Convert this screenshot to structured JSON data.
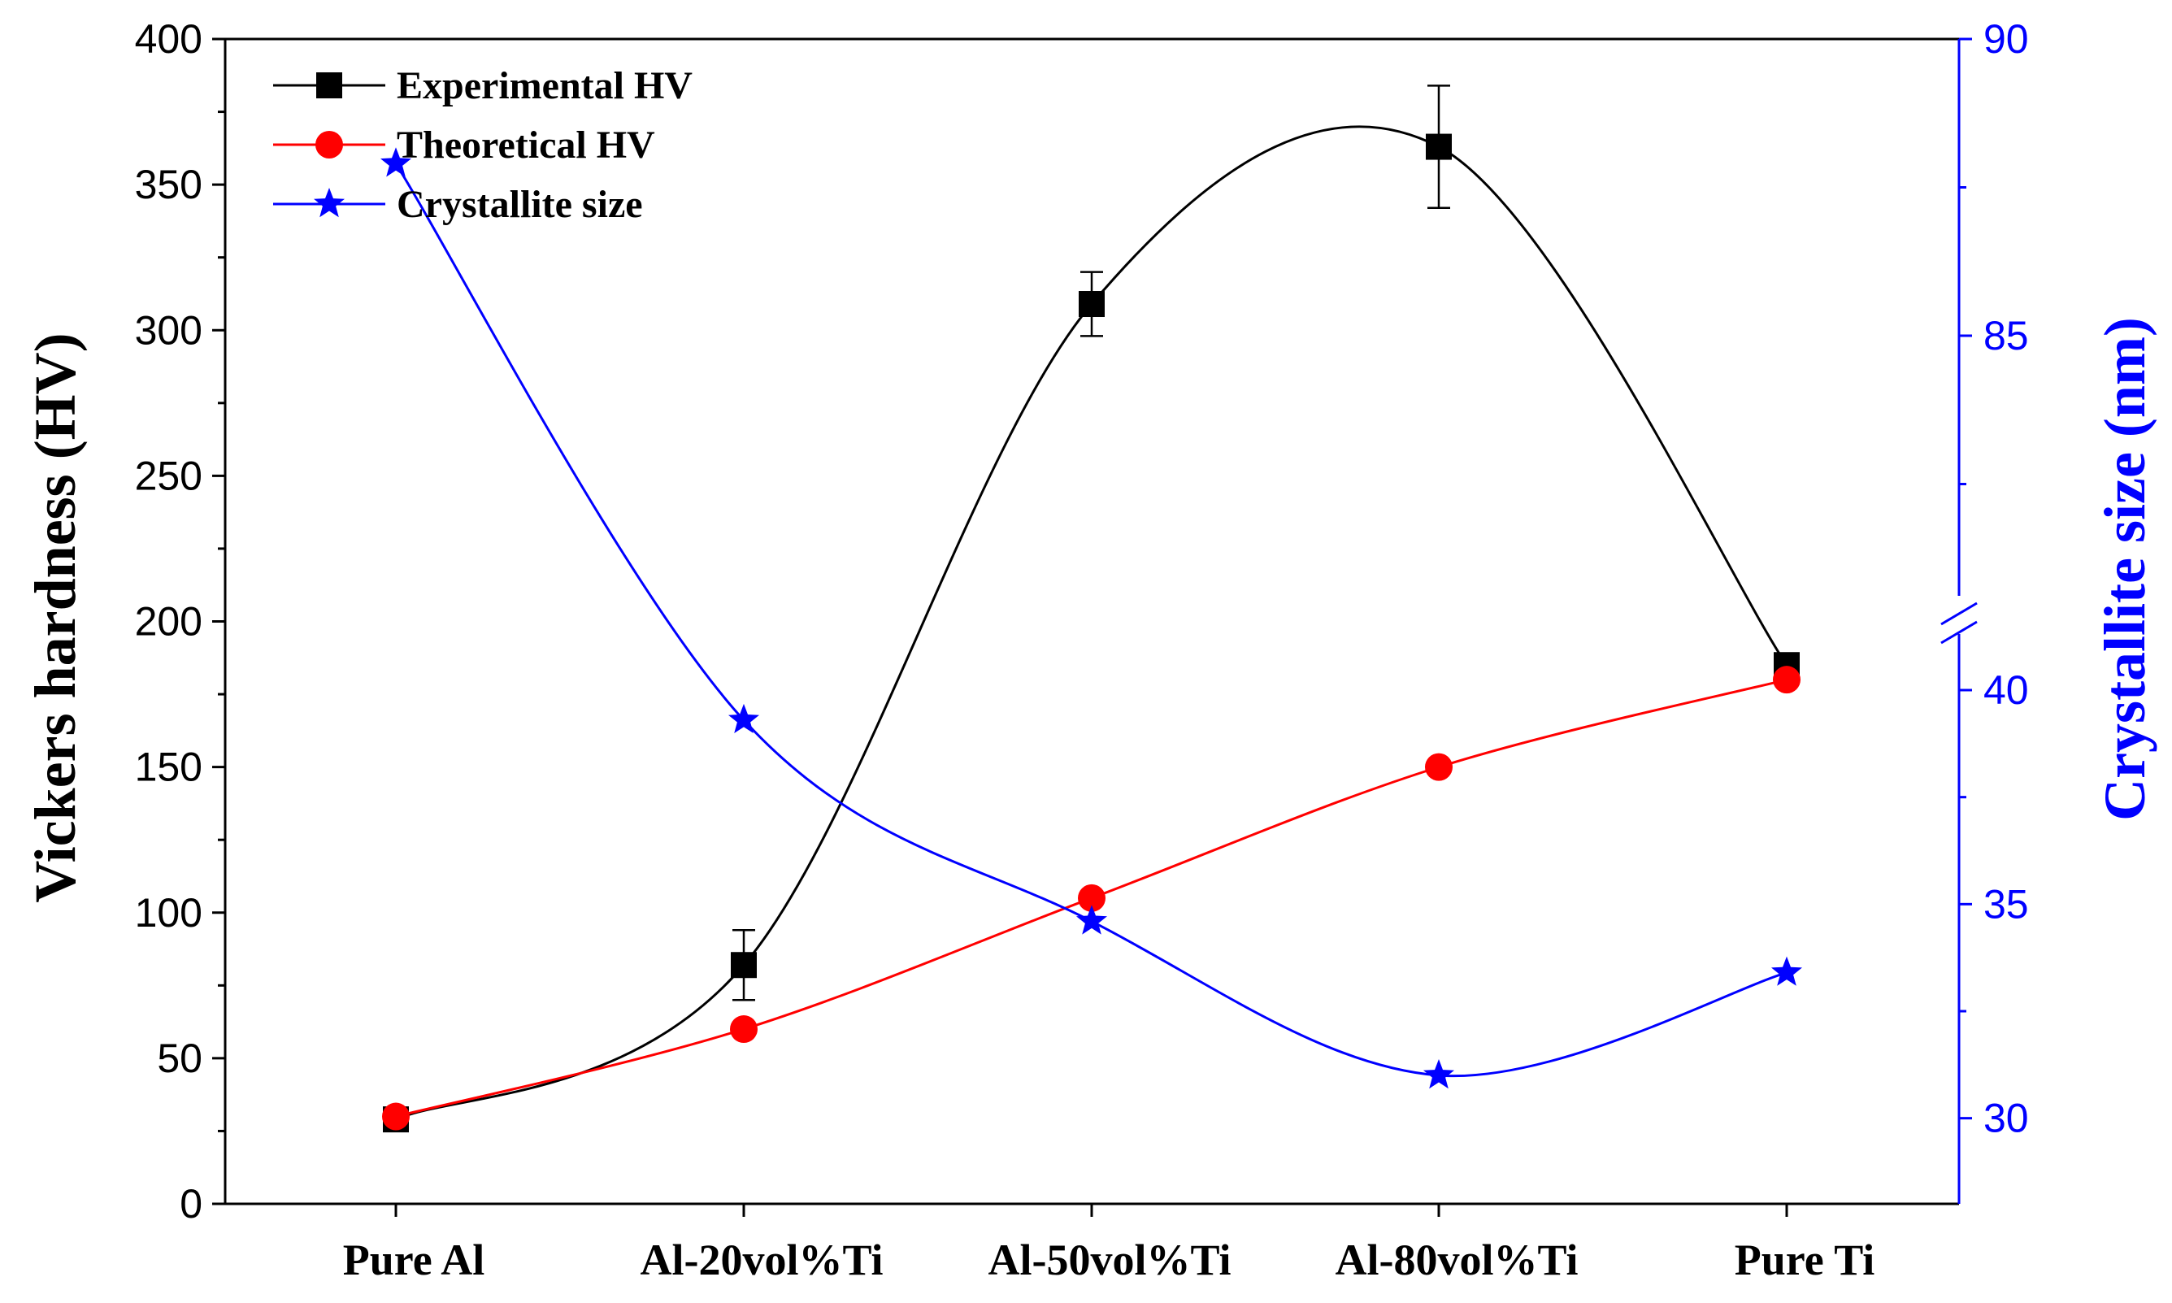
{
  "chart_data": {
    "type": "line",
    "categories": [
      "Pure Al",
      "Al-20vol%Ti",
      "Al-50vol%Ti",
      "Al-80vol%Ti",
      "Pure Ti"
    ],
    "y_left": {
      "label": "Vickers hardness (HV)",
      "range": [
        0,
        400
      ],
      "ticks": [
        "0",
        "50",
        "100",
        "150",
        "200",
        "250",
        "300",
        "350",
        "400"
      ]
    },
    "y_right": {
      "label": "Crystallite size (nm)",
      "break": true,
      "lower_range": [
        28,
        41.5
      ],
      "upper_range": [
        81,
        90
      ],
      "ticks": [
        "30",
        "35",
        "40",
        "85",
        "90"
      ],
      "color": "#0000ff"
    },
    "series": [
      {
        "name": "Experimental HV",
        "axis": "left",
        "color": "#000000",
        "marker": "square",
        "values": [
          29,
          82,
          309,
          363,
          185
        ],
        "error": [
          0,
          12,
          11,
          21,
          0
        ]
      },
      {
        "name": "Theoretical HV",
        "axis": "left",
        "color": "#ff0000",
        "marker": "circle",
        "values": [
          30,
          60,
          105,
          150,
          180
        ]
      },
      {
        "name": "Crystallite size",
        "axis": "right",
        "color": "#0000ff",
        "marker": "star",
        "values": [
          87.9,
          39.3,
          34.6,
          31.0,
          33.4
        ]
      }
    ],
    "legend": "top-left"
  }
}
